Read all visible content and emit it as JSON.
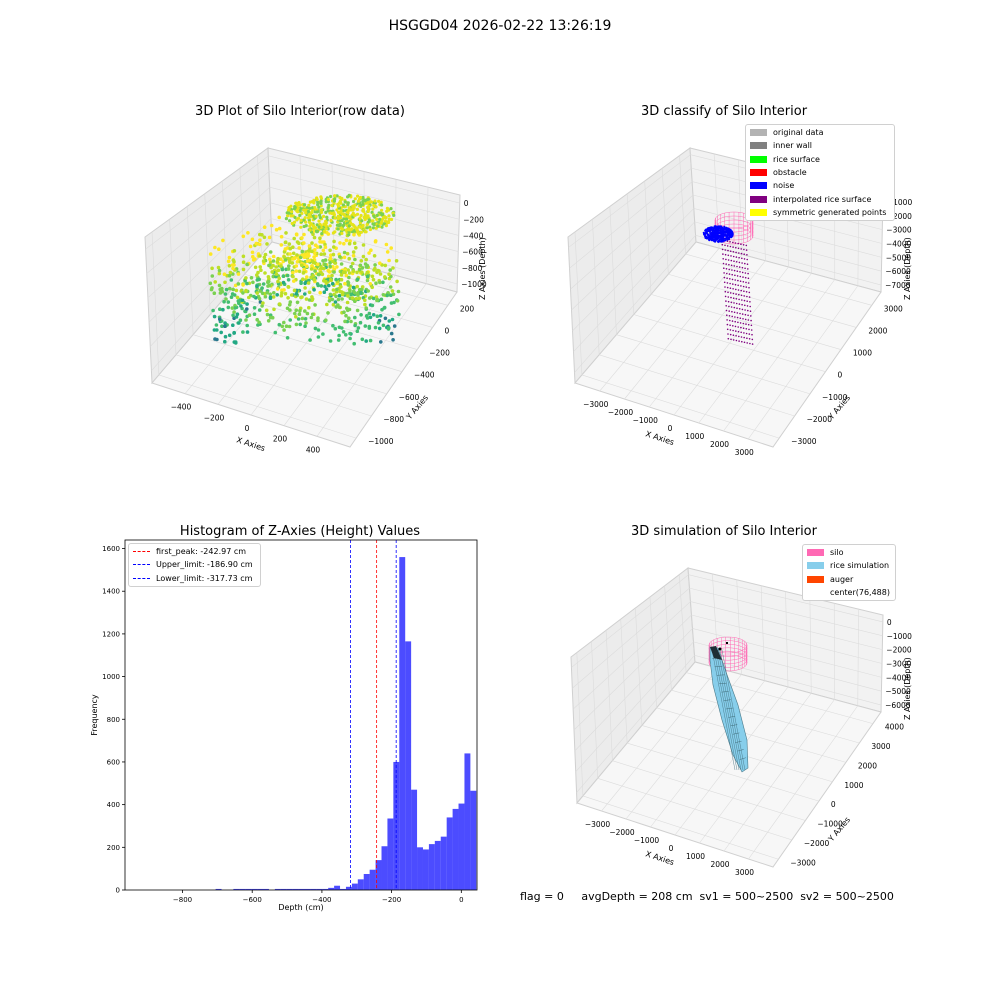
{
  "figure_title": "HSGGD04 2026-02-22 13:26:19",
  "footer_text": "flag = 0     avgDepth = 208 cm  sv1 = 500~2500  sv2 = 500~2500",
  "colors": {
    "original": "#b3b3b3",
    "inner_wall": "#808080",
    "rice_surface": "#00ff00",
    "obstacle": "#ff0000",
    "noise": "#0000ff",
    "interp": "#800080",
    "sym": "#ffff00",
    "silo": "#ff69b4",
    "rice_sim": "#87ceeb",
    "auger": "#ff4500",
    "hist": "#0000ff"
  },
  "chart_data": [
    {
      "type": "scatter",
      "title": "3D Plot of Silo Interior(row data)",
      "xlabel": "X Axies",
      "ylabel": "Y Axies",
      "zlabel": "Z Axies (Depth)",
      "x_ticks": [
        "−400",
        "−200",
        "0",
        "200",
        "400"
      ],
      "y_ticks": [
        "200",
        "0",
        "−200",
        "−400",
        "−600",
        "−800",
        "−1000"
      ],
      "z_ticks": [
        "0",
        "−200",
        "−400",
        "−600",
        "−800",
        "−1000"
      ],
      "xlim": [
        -500,
        500
      ],
      "ylim": [
        -1100,
        300
      ],
      "zlim": [
        -1100,
        50
      ],
      "colormap": "viridis (teal at depth, yellow near surface)",
      "grid": true
    },
    {
      "type": "scatter",
      "title": "3D classify of Silo Interior",
      "xlabel": "X Axies",
      "ylabel": "Y Axies",
      "zlabel": "Z Axies (Depth)",
      "x_ticks": [
        "−3000",
        "−2000",
        "−1000",
        "0",
        "1000",
        "2000",
        "3000"
      ],
      "y_ticks": [
        "3000",
        "2000",
        "1000",
        "0",
        "−1000",
        "−2000",
        "−3000"
      ],
      "z_ticks": [
        "−1000",
        "−2000",
        "−3000",
        "−4000",
        "−5000",
        "−6000",
        "−7000"
      ],
      "legend": [
        "original data",
        "inner wall",
        "rice surface",
        "obstacle",
        "noise",
        "interpolated rice surface",
        "symmetric generated points"
      ],
      "legend_position": "upper right",
      "grid": true
    },
    {
      "type": "bar",
      "title": "Histogram of Z-Axies (Height) Values",
      "xlabel": "Depth (cm)",
      "ylabel": "Frequency",
      "xlim": [
        -965,
        45
      ],
      "ylim": [
        0,
        1640
      ],
      "x_ticks": [
        -800,
        -600,
        -400,
        -200,
        0
      ],
      "y_ticks": [
        0,
        200,
        400,
        600,
        800,
        1000,
        1200,
        1400,
        1600
      ],
      "bin_edges_start": -960,
      "bin_width": 17,
      "values": [
        0,
        0,
        0,
        0,
        0,
        0,
        0,
        0,
        0,
        0,
        0,
        0,
        0,
        0,
        0,
        5,
        0,
        0,
        5,
        5,
        5,
        5,
        5,
        5,
        0,
        5,
        5,
        5,
        5,
        5,
        5,
        5,
        5,
        5,
        10,
        20,
        5,
        15,
        30,
        50,
        75,
        95,
        140,
        205,
        335,
        600,
        1560,
        1165,
        470,
        200,
        190,
        215,
        230,
        250,
        340,
        380,
        405,
        640,
        465
      ],
      "vlines": [
        {
          "label": "first_peak: -242.97 cm",
          "x": -242.97,
          "color": "#ff0000"
        },
        {
          "label": "Upper_limit: -186.90 cm",
          "x": -186.9,
          "color": "#0000ff"
        },
        {
          "label": "Lower_limit: -317.73 cm",
          "x": -317.73,
          "color": "#0000ff"
        }
      ],
      "legend_position": "upper left"
    },
    {
      "type": "scatter",
      "title": "3D simulation of Silo Interior",
      "xlabel": "X Axies",
      "ylabel": "Y Axies",
      "zlabel": "Z Axies (Depth)",
      "x_ticks": [
        "−3000",
        "−2000",
        "−1000",
        "0",
        "1000",
        "2000",
        "3000"
      ],
      "y_ticks": [
        "4000",
        "3000",
        "2000",
        "1000",
        "0",
        "−1000",
        "−2000",
        "−3000"
      ],
      "z_ticks": [
        "0",
        "−1000",
        "−2000",
        "−3000",
        "−4000",
        "−5000",
        "−6000"
      ],
      "legend": [
        "silo",
        "rice simulation",
        "auger",
        "center(76,488)"
      ],
      "legend_position": "upper right",
      "grid": true
    }
  ]
}
